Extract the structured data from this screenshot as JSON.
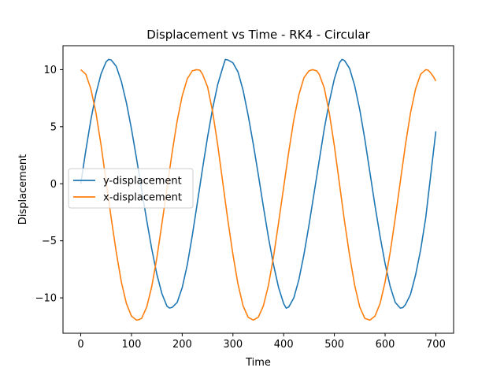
{
  "chart_data": {
    "type": "line",
    "title": "Displacement vs Time - RK4 - Circular",
    "xlabel": "Time",
    "ylabel": "Displacement",
    "xlim": [
      -35,
      735
    ],
    "ylim": [
      -13.1,
      12.1
    ],
    "xticks": [
      0,
      100,
      200,
      300,
      400,
      500,
      600,
      700
    ],
    "xtick_labels": [
      "0",
      "100",
      "200",
      "300",
      "400",
      "500",
      "600",
      "700"
    ],
    "yticks": [
      -10,
      -5,
      0,
      5,
      10
    ],
    "ytick_labels": [
      "−10",
      "−5",
      "0",
      "5",
      "10"
    ],
    "grid": false,
    "legend_position": "center-left",
    "series": [
      {
        "name": "y-displacement",
        "color": "#1f77b4",
        "x": [
          0,
          10,
          20,
          30,
          40,
          50,
          55,
          60,
          70,
          80,
          90,
          100,
          110,
          120,
          130,
          140,
          150,
          160,
          170,
          175,
          180,
          190,
          200,
          210,
          220,
          230,
          240,
          250,
          260,
          270,
          280,
          285,
          290,
          300,
          310,
          320,
          330,
          340,
          350,
          360,
          370,
          380,
          390,
          400,
          405,
          410,
          420,
          430,
          440,
          450,
          460,
          470,
          480,
          490,
          500,
          510,
          515,
          520,
          530,
          540,
          550,
          560,
          570,
          580,
          590,
          600,
          610,
          620,
          630,
          635,
          640,
          650,
          660,
          670,
          680,
          690,
          700
        ],
        "values": [
          0.0,
          2.93,
          5.62,
          7.9,
          9.63,
          10.69,
          10.9,
          10.85,
          10.29,
          8.97,
          7.1,
          4.8,
          2.2,
          -0.5,
          -3.2,
          -5.72,
          -7.93,
          -9.63,
          -10.73,
          -10.89,
          -10.84,
          -10.4,
          -9.1,
          -7.1,
          -4.5,
          -1.62,
          1.3,
          4.1,
          6.6,
          8.7,
          10.2,
          10.9,
          10.85,
          10.6,
          9.8,
          8.2,
          6.0,
          3.5,
          0.8,
          -2.0,
          -4.7,
          -7.1,
          -9.1,
          -10.5,
          -10.9,
          -10.8,
          -10.0,
          -8.4,
          -6.2,
          -3.6,
          -0.8,
          2.0,
          4.8,
          7.2,
          9.2,
          10.6,
          10.9,
          10.8,
          10.1,
          8.6,
          6.5,
          3.9,
          1.0,
          -1.9,
          -4.6,
          -7.0,
          -9.0,
          -10.4,
          -10.9,
          -10.85,
          -10.6,
          -9.7,
          -8.0,
          -5.8,
          -3.0,
          0.8,
          4.6
        ]
      },
      {
        "name": "x-displacement",
        "color": "#ff7f0e",
        "x": [
          0,
          10,
          20,
          30,
          40,
          50,
          60,
          70,
          80,
          90,
          100,
          110,
          115,
          120,
          130,
          140,
          150,
          160,
          170,
          180,
          190,
          200,
          210,
          220,
          228,
          235,
          240,
          250,
          260,
          270,
          280,
          290,
          300,
          310,
          320,
          330,
          340,
          350,
          360,
          370,
          380,
          390,
          400,
          410,
          420,
          430,
          440,
          450,
          457,
          465,
          470,
          480,
          490,
          500,
          510,
          520,
          530,
          540,
          550,
          560,
          570,
          580,
          590,
          600,
          610,
          620,
          630,
          640,
          650,
          660,
          670,
          680,
          685,
          690,
          695,
          700
        ],
        "values": [
          10.0,
          9.6,
          8.3,
          6.2,
          3.4,
          0.2,
          -3.0,
          -6.0,
          -8.6,
          -10.5,
          -11.6,
          -11.95,
          -11.9,
          -11.8,
          -10.8,
          -9.0,
          -6.5,
          -3.5,
          -0.4,
          2.7,
          5.5,
          7.7,
          9.2,
          9.9,
          10.0,
          9.95,
          9.6,
          8.5,
          6.3,
          3.4,
          0.1,
          -3.2,
          -6.2,
          -8.8,
          -10.7,
          -11.7,
          -11.95,
          -11.7,
          -10.7,
          -8.9,
          -6.4,
          -3.4,
          -0.3,
          2.8,
          5.6,
          7.8,
          9.3,
          9.9,
          10.0,
          9.9,
          9.6,
          8.4,
          6.2,
          3.3,
          0.0,
          -3.3,
          -6.3,
          -8.9,
          -10.8,
          -11.8,
          -11.95,
          -11.6,
          -10.5,
          -8.6,
          -6.0,
          -3.0,
          0.2,
          3.4,
          6.2,
          8.3,
          9.6,
          10.0,
          9.95,
          9.7,
          9.4,
          9.0
        ]
      }
    ]
  }
}
